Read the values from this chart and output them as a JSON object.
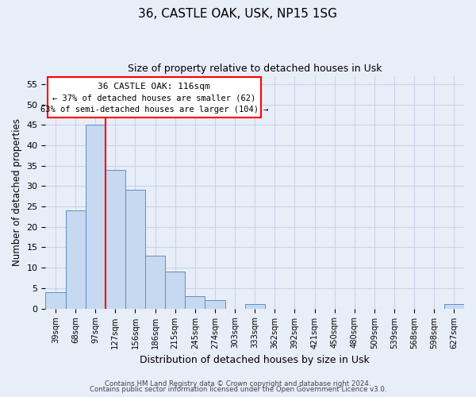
{
  "title": "36, CASTLE OAK, USK, NP15 1SG",
  "subtitle": "Size of property relative to detached houses in Usk",
  "xlabel": "Distribution of detached houses by size in Usk",
  "ylabel": "Number of detached properties",
  "bar_labels": [
    "39sqm",
    "68sqm",
    "97sqm",
    "127sqm",
    "156sqm",
    "186sqm",
    "215sqm",
    "245sqm",
    "274sqm",
    "303sqm",
    "333sqm",
    "362sqm",
    "392sqm",
    "421sqm",
    "450sqm",
    "480sqm",
    "509sqm",
    "539sqm",
    "568sqm",
    "598sqm",
    "627sqm"
  ],
  "bar_values": [
    4,
    24,
    45,
    34,
    29,
    13,
    9,
    3,
    2,
    0,
    1,
    0,
    0,
    0,
    0,
    0,
    0,
    0,
    0,
    0,
    1
  ],
  "bar_color": "#c6d9f0",
  "bar_edge_color": "#5b8fcc",
  "ylim": [
    0,
    57
  ],
  "yticks": [
    0,
    5,
    10,
    15,
    20,
    25,
    30,
    35,
    40,
    45,
    50,
    55
  ],
  "annotation_title": "36 CASTLE OAK: 116sqm",
  "annotation_line1": "← 37% of detached houses are smaller (62)",
  "annotation_line2": "63% of semi-detached houses are larger (104) →",
  "footer_line1": "Contains HM Land Registry data © Crown copyright and database right 2024.",
  "footer_line2": "Contains public sector information licensed under the Open Government Licence v3.0.",
  "grid_color": "#c8d4e8",
  "background_color": "#e8eef8",
  "red_line_x": 2.5
}
